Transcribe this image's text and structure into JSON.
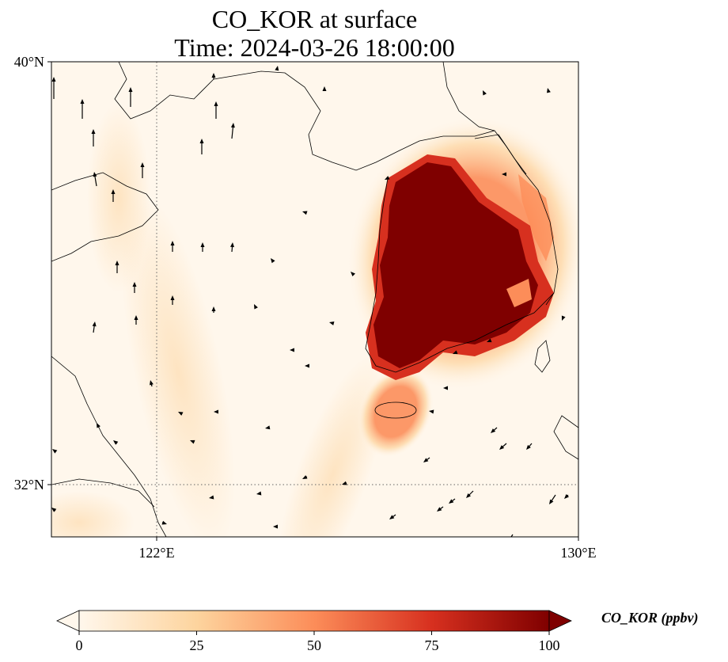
{
  "title": {
    "line1": "CO_KOR at surface",
    "line2": "Time: 2024-03-26 18:00:00"
  },
  "map": {
    "lat_ticks": [
      "40°N",
      "32°N"
    ],
    "lon_ticks": [
      "122°E",
      "130°E"
    ],
    "gridlines": "dotted",
    "coastlines": true,
    "wind_vectors": true
  },
  "colorbar": {
    "label": "CO_KOR (ppbv)",
    "ticks": [
      "0",
      "25",
      "50",
      "75",
      "100"
    ],
    "range": [
      0,
      100
    ],
    "extend": "both",
    "colormap": "OrRd",
    "colors": [
      "#fff7ec",
      "#fdd49e",
      "#fc8d59",
      "#d7301f",
      "#7f0000"
    ]
  }
}
